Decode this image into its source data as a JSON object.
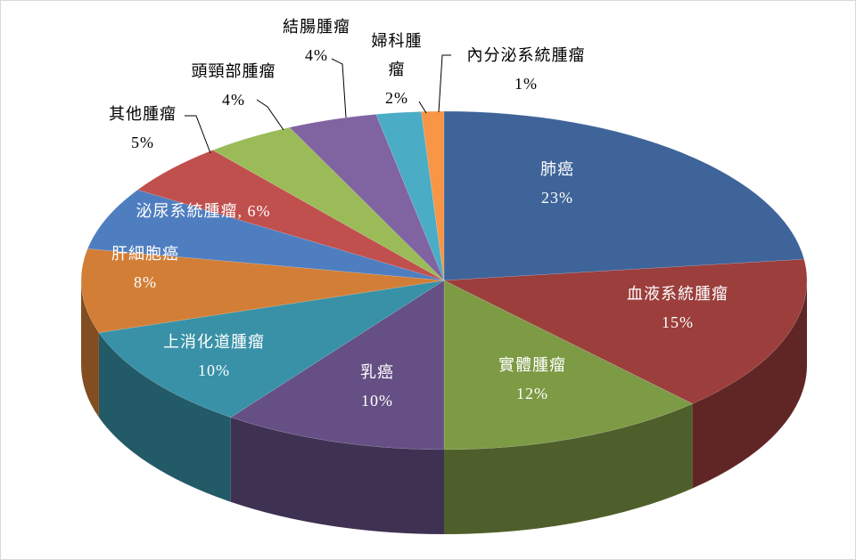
{
  "chart_data": {
    "type": "pie",
    "three_d": true,
    "categories": [
      "肺癌",
      "血液系統腫瘤",
      "實體腫瘤",
      "乳癌",
      "上消化道腫瘤",
      "肝細胞癌",
      "泌尿系統腫瘤",
      "其他腫瘤",
      "頭頸部腫瘤",
      "結腸腫瘤",
      "婦科腫瘤",
      "內分泌系統腫瘤"
    ],
    "values": [
      23,
      15,
      12,
      10,
      10,
      8,
      6,
      5,
      4,
      4,
      2,
      1
    ],
    "value_labels": [
      "23%",
      "15%",
      "12%",
      "10%",
      "10%",
      "8%",
      "6%",
      "5%",
      "4%",
      "4%",
      "2%",
      "1%"
    ],
    "label_separator": ", ",
    "colors": [
      "#3E6499",
      "#9B3E3C",
      "#7D9A45",
      "#654F84",
      "#3891A7",
      "#D27E36",
      "#4F7EC0",
      "#C0504D",
      "#9BBB59",
      "#8064A2",
      "#4BACC6",
      "#F79646"
    ]
  }
}
